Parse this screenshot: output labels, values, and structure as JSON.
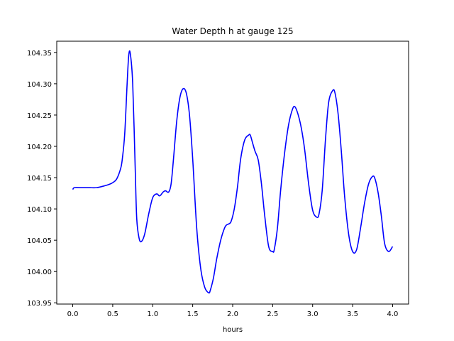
{
  "chart_data": {
    "type": "line",
    "title": "Water Depth h at gauge 125",
    "xlabel": "hours",
    "ylabel": "",
    "xlim": [
      -0.2,
      4.2
    ],
    "ylim": [
      103.948,
      104.368
    ],
    "xticks": [
      0.0,
      0.5,
      1.0,
      1.5,
      2.0,
      2.5,
      3.0,
      3.5,
      4.0
    ],
    "xtick_labels": [
      "0.0",
      "0.5",
      "1.0",
      "1.5",
      "2.0",
      "2.5",
      "3.0",
      "3.5",
      "4.0"
    ],
    "yticks": [
      103.95,
      104.0,
      104.05,
      104.1,
      104.15,
      104.2,
      104.25,
      104.3,
      104.35
    ],
    "ytick_labels": [
      "103.95",
      "104.00",
      "104.05",
      "104.10",
      "104.15",
      "104.20",
      "104.25",
      "104.30",
      "104.35"
    ],
    "grid": false,
    "series": [
      {
        "color": "#0000ff",
        "x": [
          0.0,
          0.02,
          0.1,
          0.2,
          0.3,
          0.4,
          0.45,
          0.5,
          0.55,
          0.6,
          0.62,
          0.65,
          0.68,
          0.7,
          0.72,
          0.75,
          0.78,
          0.8,
          0.83,
          0.86,
          0.9,
          0.95,
          1.0,
          1.05,
          1.08,
          1.1,
          1.13,
          1.16,
          1.2,
          1.23,
          1.26,
          1.3,
          1.34,
          1.38,
          1.42,
          1.46,
          1.5,
          1.55,
          1.6,
          1.65,
          1.7,
          1.72,
          1.76,
          1.8,
          1.85,
          1.9,
          1.93,
          1.95,
          1.98,
          2.02,
          2.06,
          2.1,
          2.15,
          2.2,
          2.22,
          2.25,
          2.28,
          2.32,
          2.36,
          2.4,
          2.45,
          2.5,
          2.52,
          2.56,
          2.6,
          2.65,
          2.7,
          2.75,
          2.78,
          2.82,
          2.86,
          2.9,
          2.95,
          3.0,
          3.05,
          3.08,
          3.12,
          3.16,
          3.2,
          3.25,
          3.28,
          3.32,
          3.36,
          3.4,
          3.45,
          3.5,
          3.55,
          3.6,
          3.65,
          3.7,
          3.75,
          3.78,
          3.82,
          3.86,
          3.9,
          3.95,
          4.0
        ],
        "y": [
          104.131,
          104.134,
          104.134,
          104.134,
          104.134,
          104.137,
          104.139,
          104.142,
          104.148,
          104.165,
          104.18,
          104.22,
          104.3,
          104.345,
          104.348,
          104.3,
          104.17,
          104.085,
          104.053,
          104.048,
          104.06,
          104.092,
          104.118,
          104.124,
          104.121,
          104.122,
          104.127,
          104.129,
          104.127,
          104.14,
          104.18,
          104.24,
          104.278,
          104.292,
          104.285,
          104.25,
          104.18,
          104.07,
          104.005,
          103.975,
          103.966,
          103.97,
          103.99,
          104.02,
          104.05,
          104.07,
          104.075,
          104.076,
          104.08,
          104.1,
          104.135,
          104.18,
          104.21,
          104.218,
          104.218,
          104.205,
          104.192,
          104.178,
          104.14,
          104.09,
          104.04,
          104.032,
          104.035,
          104.07,
          104.13,
          104.19,
          104.235,
          104.26,
          104.263,
          104.25,
          104.228,
          104.195,
          104.14,
          104.098,
          104.087,
          104.092,
          104.13,
          104.21,
          104.27,
          104.289,
          104.285,
          104.25,
          104.19,
          104.12,
          104.06,
          104.032,
          104.035,
          104.07,
          104.11,
          104.14,
          104.152,
          104.148,
          104.125,
          104.088,
          104.045,
          104.032,
          104.04
        ]
      }
    ]
  }
}
